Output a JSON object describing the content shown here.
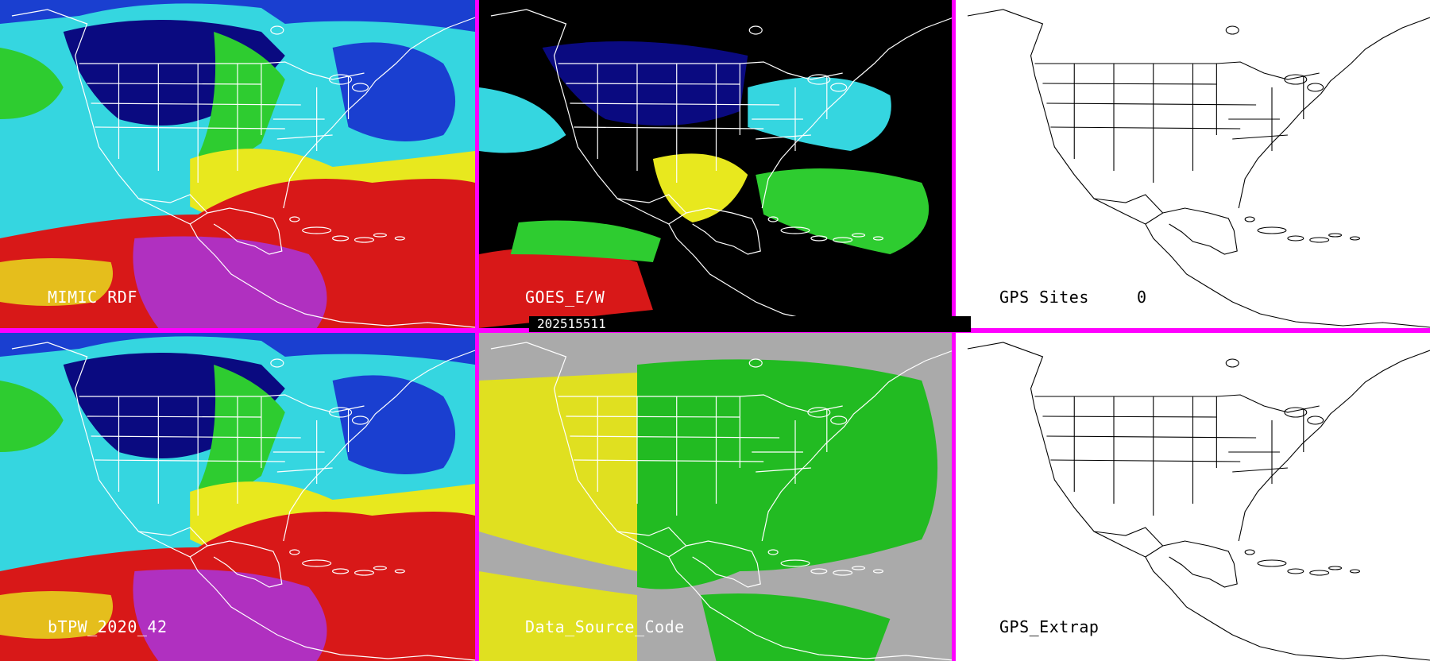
{
  "panels": {
    "top_left": {
      "label": "MIMIC RDF"
    },
    "top_middle": {
      "label": "GOES_E/W",
      "timestamp": "202515511"
    },
    "top_right": {
      "label": "GPS Sites",
      "value": "0"
    },
    "bottom_left": {
      "label": "bTPW_2020_42"
    },
    "bottom_middle": {
      "label": "Data_Source_Code"
    },
    "bottom_right": {
      "label": "GPS_Extrap"
    }
  },
  "colors": {
    "divider": "#ff00ff",
    "tpw_very_dry": "#0a0a80",
    "tpw_dry": "#1a3fd0",
    "tpw_low": "#35d6e0",
    "tpw_mid": "#2ecc30",
    "tpw_high": "#e8e81e",
    "tpw_very_high": "#d81818",
    "tpw_extreme": "#b030c0",
    "source_ir": "#aaaaaa",
    "source_mw": "#e0e020",
    "source_green": "#22bb22",
    "missing": "#000000",
    "borders": "#ffffff"
  }
}
